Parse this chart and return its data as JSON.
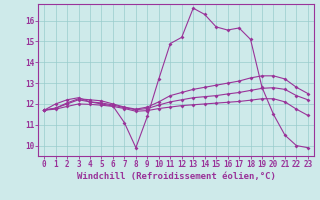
{
  "xlabel": "Windchill (Refroidissement éolien,°C)",
  "background_color": "#ceeaea",
  "line_color": "#993399",
  "grid_color": "#99cccc",
  "x_values": [
    0,
    1,
    2,
    3,
    4,
    5,
    6,
    7,
    8,
    9,
    10,
    11,
    12,
    13,
    14,
    15,
    16,
    17,
    18,
    19,
    20,
    21,
    22,
    23
  ],
  "line1": [
    11.7,
    12.0,
    12.2,
    12.3,
    12.1,
    12.0,
    11.9,
    11.1,
    9.9,
    11.4,
    13.2,
    14.9,
    15.2,
    16.6,
    16.3,
    15.7,
    15.55,
    15.65,
    15.1,
    12.8,
    11.5,
    10.5,
    10.0,
    9.9
  ],
  "line2": [
    11.7,
    11.8,
    12.05,
    12.25,
    12.2,
    12.15,
    12.0,
    11.85,
    11.75,
    11.85,
    12.1,
    12.4,
    12.55,
    12.7,
    12.8,
    12.9,
    13.0,
    13.1,
    13.25,
    13.35,
    13.35,
    13.2,
    12.8,
    12.5
  ],
  "line3": [
    11.7,
    11.8,
    12.0,
    12.2,
    12.1,
    12.05,
    11.95,
    11.82,
    11.72,
    11.78,
    11.95,
    12.1,
    12.2,
    12.3,
    12.35,
    12.4,
    12.48,
    12.55,
    12.65,
    12.75,
    12.78,
    12.7,
    12.4,
    12.2
  ],
  "line4": [
    11.7,
    11.75,
    11.88,
    12.0,
    11.98,
    11.94,
    11.88,
    11.78,
    11.65,
    11.68,
    11.78,
    11.85,
    11.92,
    11.96,
    12.0,
    12.04,
    12.08,
    12.12,
    12.18,
    12.25,
    12.25,
    12.1,
    11.75,
    11.45
  ],
  "ylim": [
    9.5,
    16.8
  ],
  "yticks": [
    10,
    11,
    12,
    13,
    14,
    15,
    16
  ],
  "xticks": [
    0,
    1,
    2,
    3,
    4,
    5,
    6,
    7,
    8,
    9,
    10,
    11,
    12,
    13,
    14,
    15,
    16,
    17,
    18,
    19,
    20,
    21,
    22,
    23
  ],
  "tick_fontsize": 5.5,
  "xlabel_fontsize": 6.5,
  "markersize": 2.0,
  "linewidth": 0.8
}
